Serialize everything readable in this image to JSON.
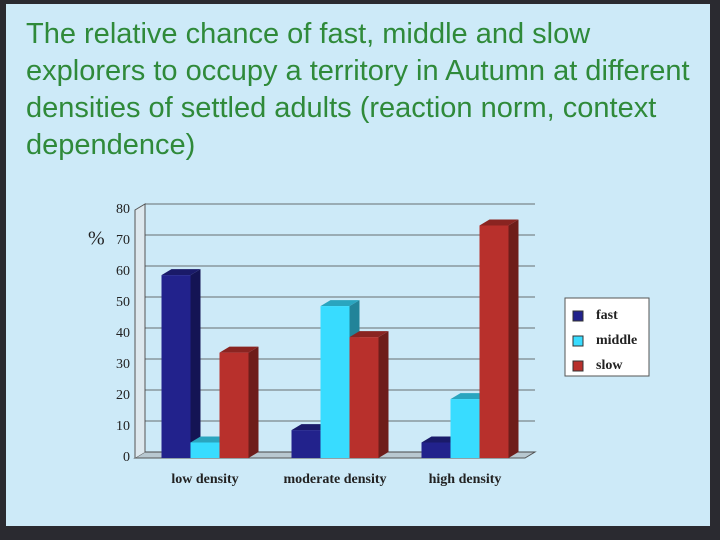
{
  "chart_data": {
    "type": "bar",
    "title": "The relative chance of fast, middle and slow explorers to occupy a territory in Autumn at different densities of settled adults (reaction norm, context dependence)",
    "y_label": "%",
    "categories": [
      "low density",
      "moderate density",
      "high density"
    ],
    "series": [
      {
        "name": "fast",
        "color": "#22228c",
        "values": [
          59,
          9,
          5
        ]
      },
      {
        "name": "middle",
        "color": "#38dcff",
        "values": [
          5,
          49,
          19
        ]
      },
      {
        "name": "slow",
        "color": "#b8302c",
        "values": [
          34,
          39,
          75
        ]
      }
    ],
    "ylim": [
      0,
      80
    ],
    "yticks": [
      0,
      10,
      20,
      30,
      40,
      50,
      60,
      70,
      80
    ],
    "grid": true,
    "legend": "right"
  }
}
